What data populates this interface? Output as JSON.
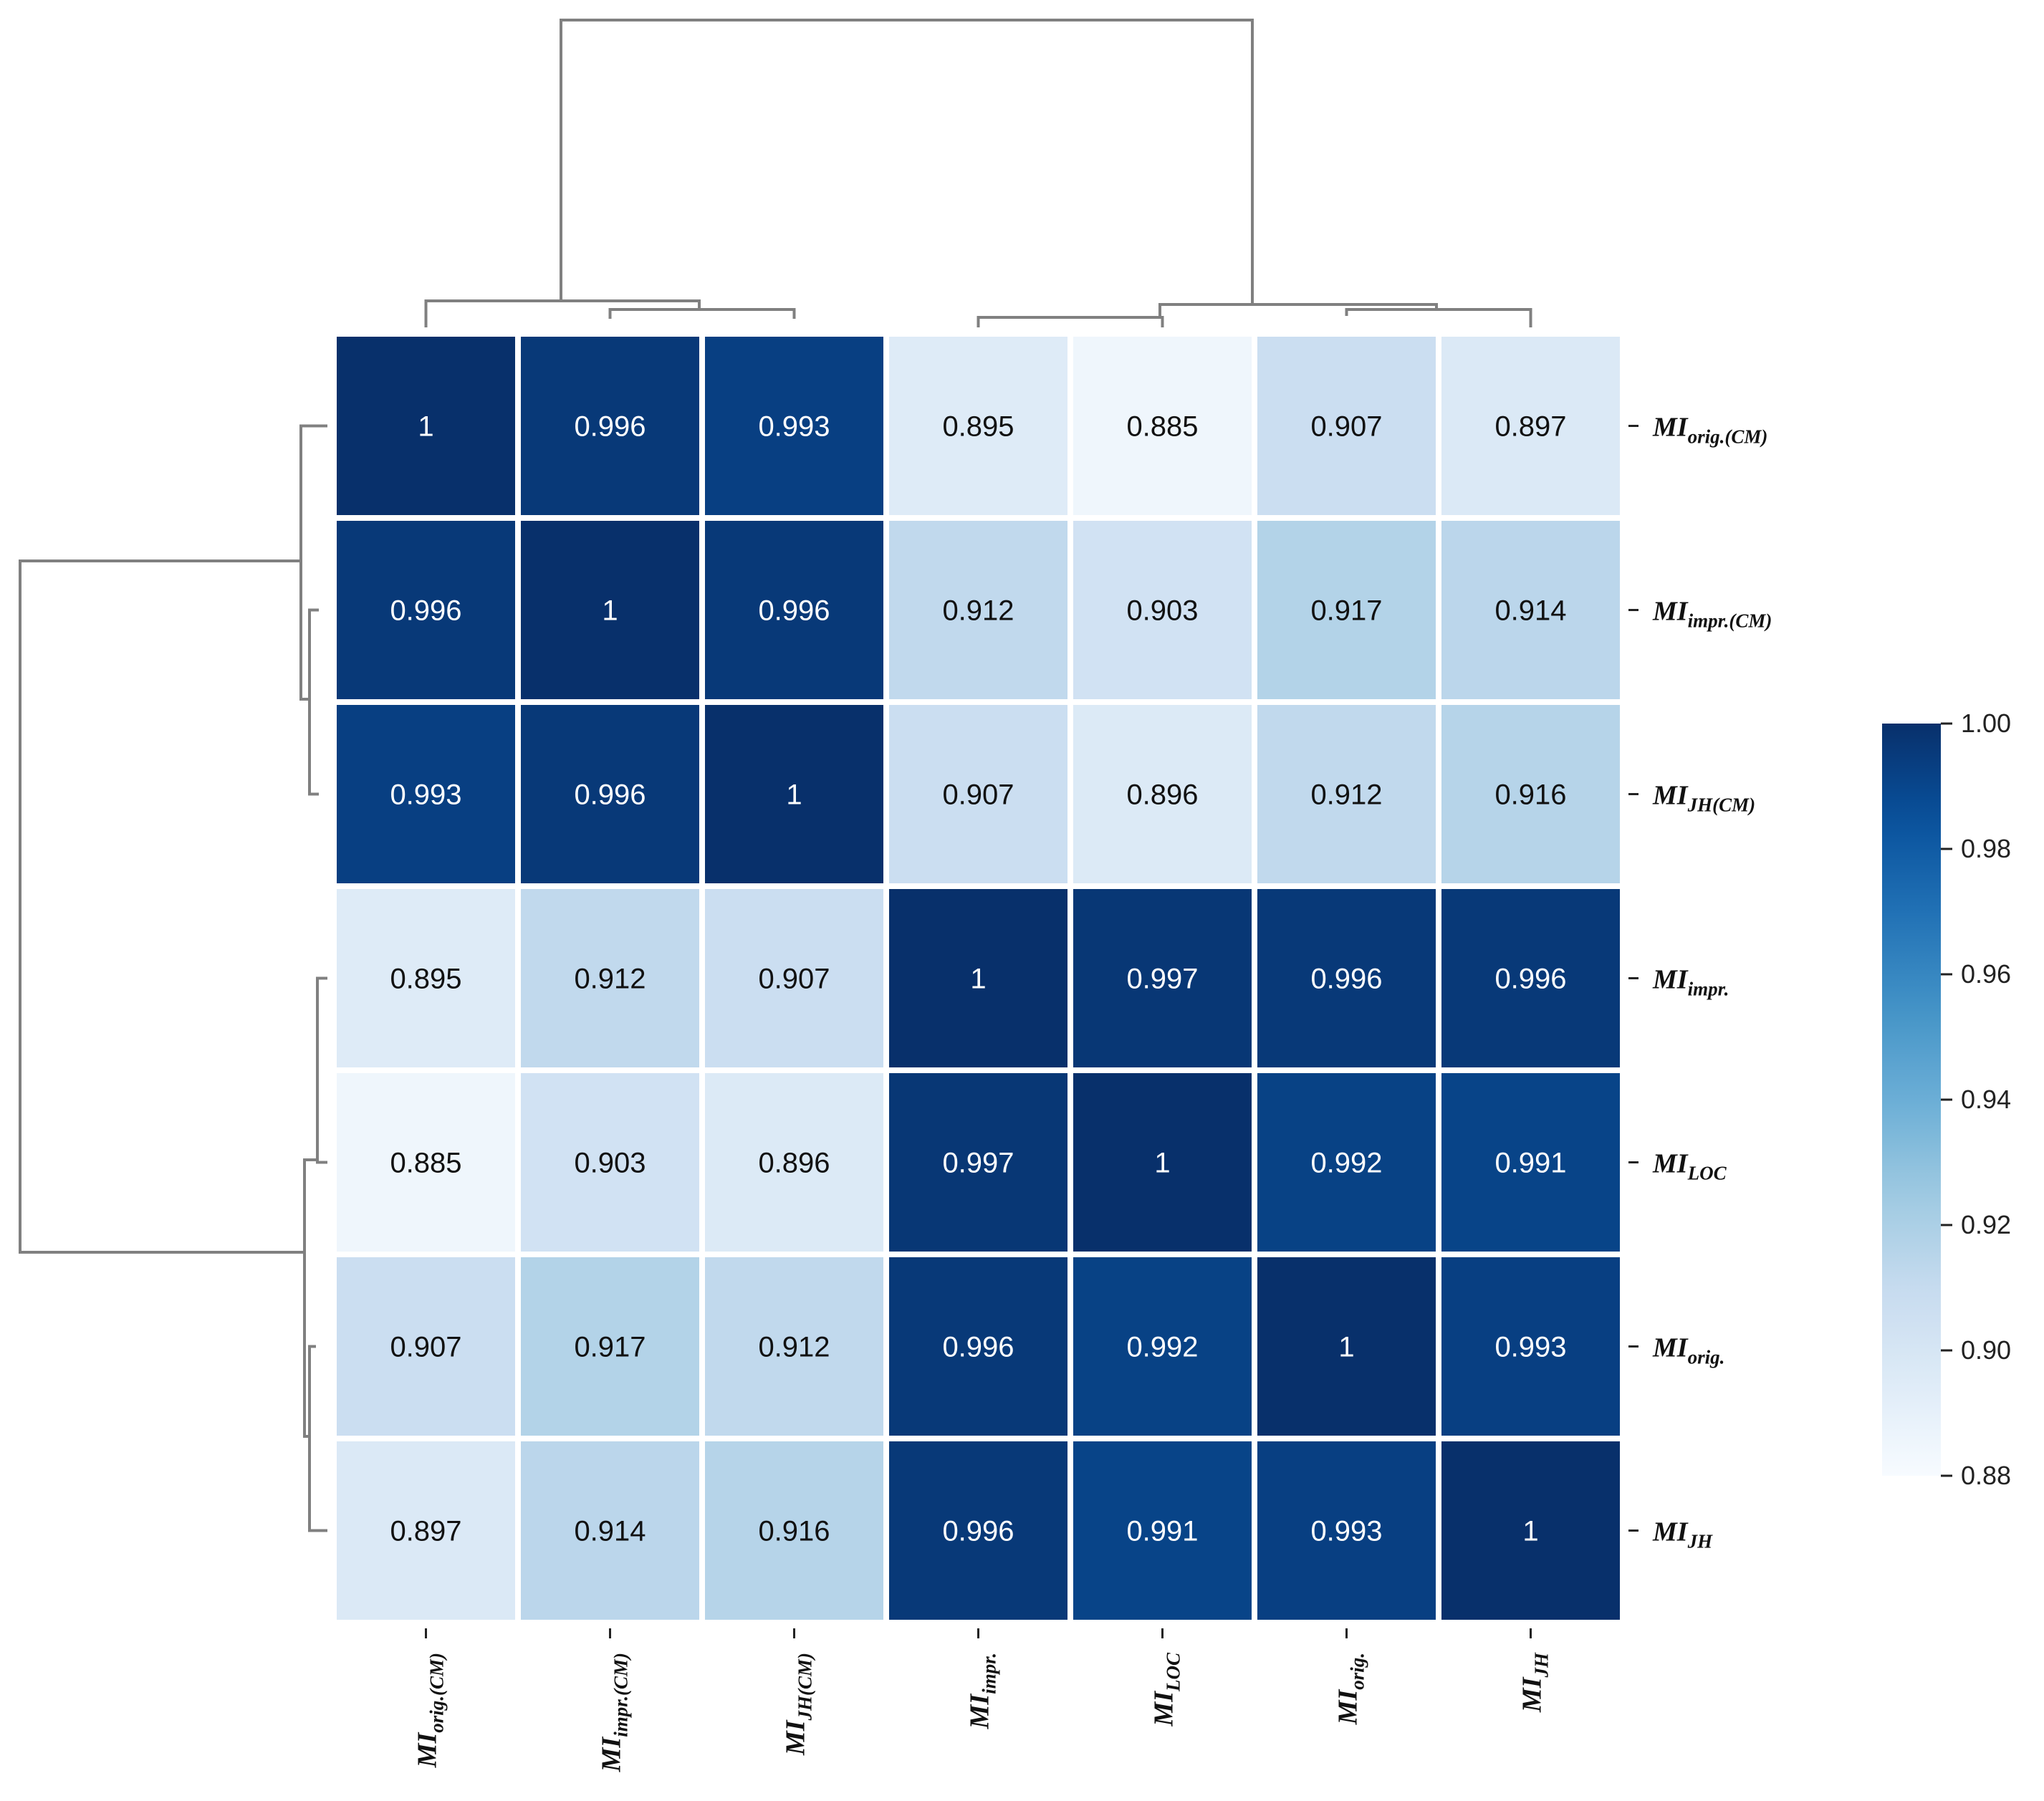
{
  "chart_data": {
    "type": "heatmap",
    "title": "",
    "row_labels": [
      {
        "main": "MI",
        "sub": "orig.(CM)"
      },
      {
        "main": "MI",
        "sub": "impr.(CM)"
      },
      {
        "main": "MI",
        "sub": "JH(CM)"
      },
      {
        "main": "MI",
        "sub": "impr."
      },
      {
        "main": "MI",
        "sub": "LOC"
      },
      {
        "main": "MI",
        "sub": "orig."
      },
      {
        "main": "MI",
        "sub": "JH"
      }
    ],
    "col_labels": [
      {
        "main": "MI",
        "sub": "orig.(CM)"
      },
      {
        "main": "MI",
        "sub": "impr.(CM)"
      },
      {
        "main": "MI",
        "sub": "JH(CM)"
      },
      {
        "main": "MI",
        "sub": "impr."
      },
      {
        "main": "MI",
        "sub": "LOC"
      },
      {
        "main": "MI",
        "sub": "orig."
      },
      {
        "main": "MI",
        "sub": "JH"
      }
    ],
    "values": [
      [
        1,
        0.996,
        0.993,
        0.895,
        0.885,
        0.907,
        0.897
      ],
      [
        0.996,
        1,
        0.996,
        0.912,
        0.903,
        0.917,
        0.914
      ],
      [
        0.993,
        0.996,
        1,
        0.907,
        0.896,
        0.912,
        0.916
      ],
      [
        0.895,
        0.912,
        0.907,
        1,
        0.997,
        0.996,
        0.996
      ],
      [
        0.885,
        0.903,
        0.896,
        0.997,
        1,
        0.992,
        0.991
      ],
      [
        0.907,
        0.917,
        0.912,
        0.996,
        0.992,
        1,
        0.993
      ],
      [
        0.897,
        0.914,
        0.916,
        0.996,
        0.991,
        0.993,
        1
      ]
    ],
    "colorbar": {
      "range": [
        0.88,
        1.0
      ],
      "ticks": [
        "0.88",
        "0.90",
        "0.92",
        "0.94",
        "0.96",
        "0.98",
        "1.00"
      ],
      "colormap": "Blues"
    },
    "row_dendrogram": "left",
    "col_dendrogram": "top"
  },
  "colors": {
    "dendrogram": "#808080",
    "cell_border": "#ffffff",
    "light_text": "#ffffff",
    "dark_text": "#111111"
  }
}
